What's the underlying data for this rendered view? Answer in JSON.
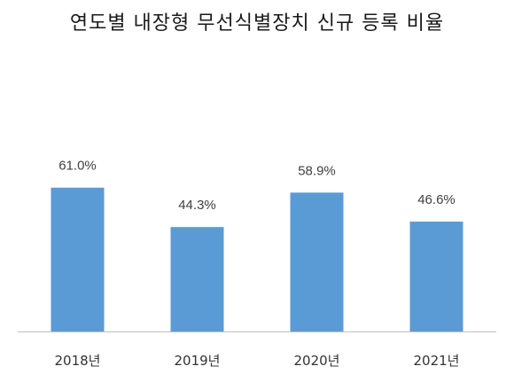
{
  "chart_data": {
    "type": "bar",
    "title": "연도별 내장형 무선식별장치 신규 등록 비율",
    "xlabel": "",
    "ylabel": "",
    "categories": [
      "2018년",
      "2019년",
      "2020년",
      "2021년"
    ],
    "values": [
      61.0,
      44.3,
      58.9,
      46.6
    ],
    "value_labels": [
      "61.0%",
      "44.3%",
      "58.9%",
      "46.6%"
    ],
    "unit": "%",
    "ylim": [
      0,
      100
    ],
    "grid": false,
    "legend": "none",
    "bar_color": "#5b9bd5",
    "axis_color": "#bfbfbf"
  }
}
